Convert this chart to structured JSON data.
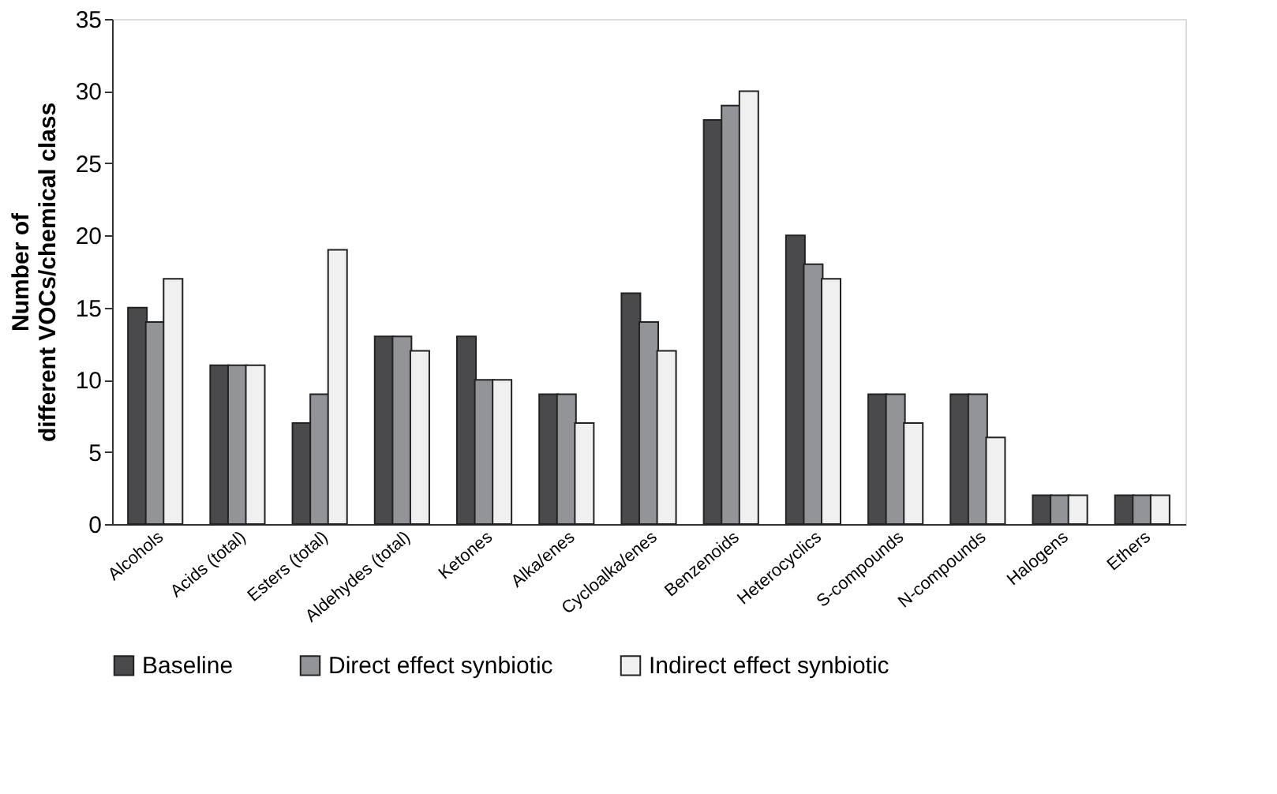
{
  "chart_data": {
    "type": "bar",
    "ylabel": "Number of\ndifferent VOCs/chemical class",
    "categories": [
      "Alcohols",
      "Acids (total)",
      "Esters (total)",
      "Aldehydes (total)",
      "Ketones",
      "Alka/enes",
      "Cycloalka/enes",
      "Benzenoids",
      "Heterocyclics",
      "S-compounds",
      "N-compounds",
      "Halogens",
      "Ethers"
    ],
    "series": [
      {
        "name": "Baseline",
        "color": "#4a4a4c",
        "values": [
          15,
          11,
          7,
          13,
          13,
          9,
          16,
          28,
          20,
          9,
          9,
          2,
          2
        ]
      },
      {
        "name": "Direct effect synbiotic",
        "color": "#939497",
        "values": [
          14,
          11,
          9,
          13,
          10,
          9,
          14,
          29,
          18,
          9,
          9,
          2,
          2
        ]
      },
      {
        "name": "Indirect effect synbiotic",
        "color": "#f0f0f0",
        "values": [
          17,
          11,
          19,
          12,
          10,
          7,
          12,
          30,
          17,
          7,
          6,
          2,
          2
        ]
      }
    ],
    "ylim": [
      0,
      35
    ],
    "yticks": [
      0,
      5,
      10,
      15,
      20,
      25,
      30,
      35
    ],
    "grid": false,
    "legend": "bottom"
  }
}
